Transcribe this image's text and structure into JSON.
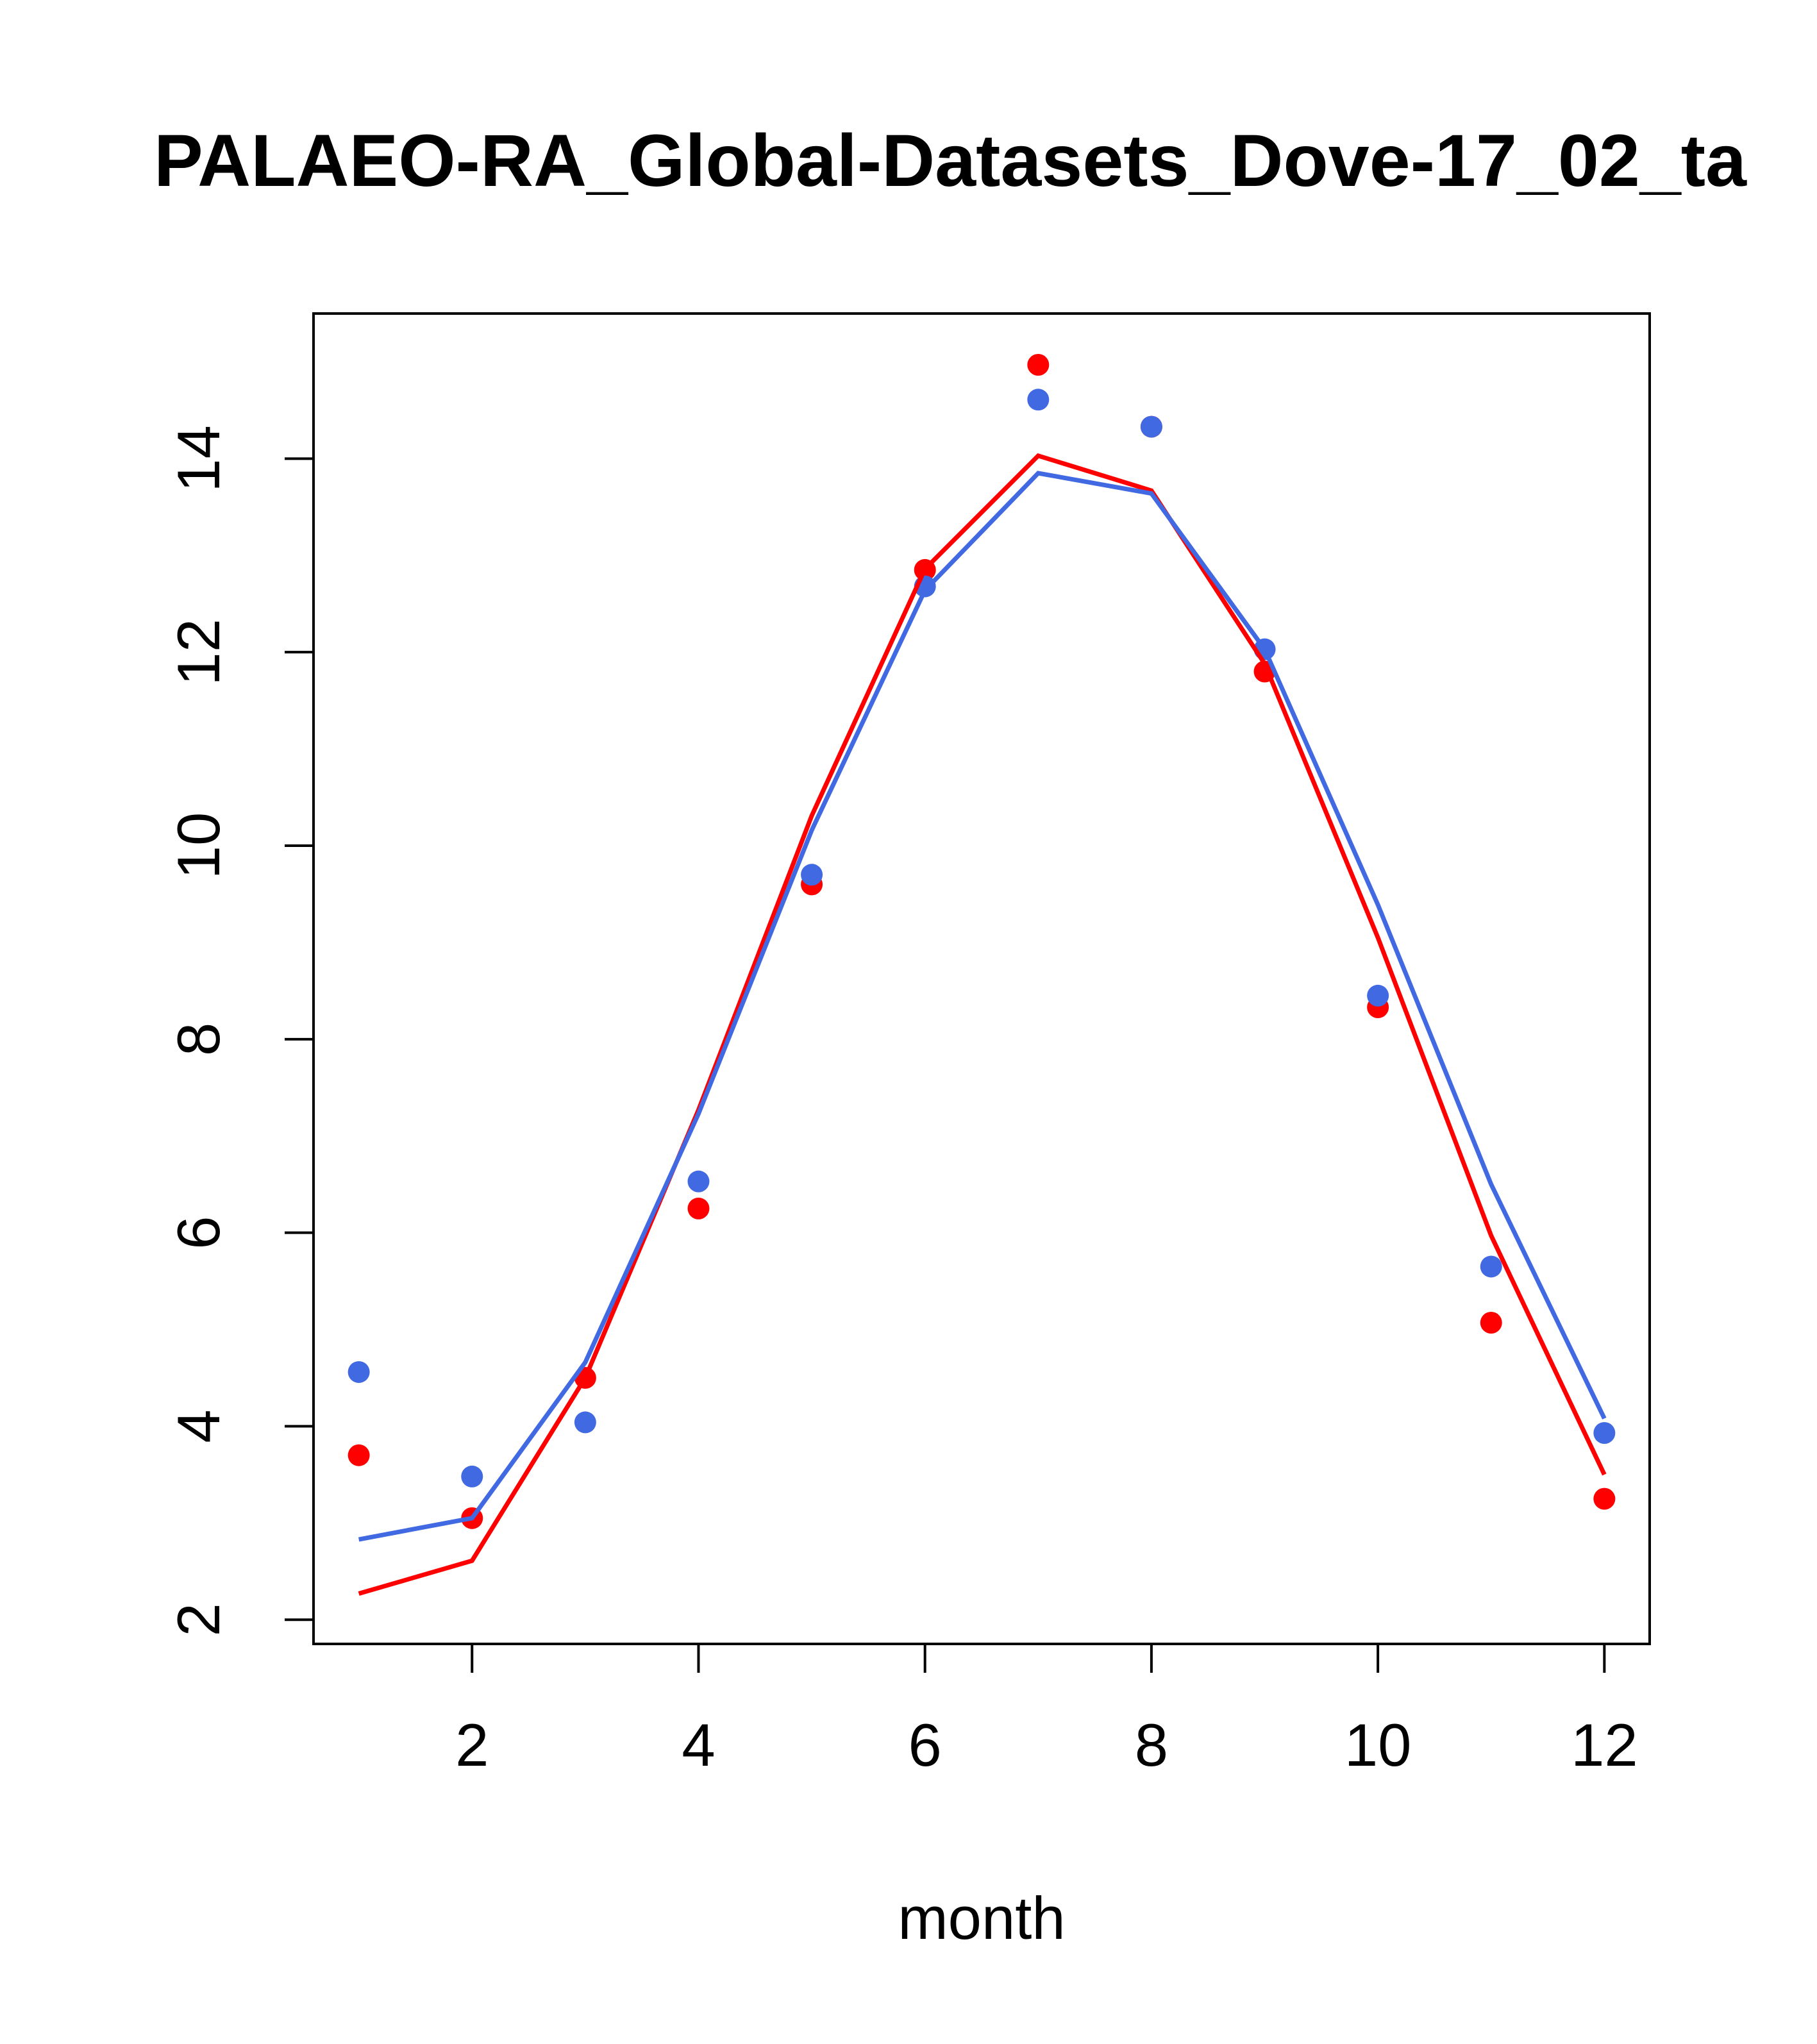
{
  "chart_data": {
    "type": "line",
    "title": "PALAEO-RA_Global-Datasets_Dove-17_02_ta",
    "xlabel": "month",
    "ylabel": "",
    "xlim": [
      0.6,
      12.4
    ],
    "ylim": [
      1.75,
      15.5
    ],
    "x_ticks": [
      2,
      4,
      6,
      8,
      10,
      12
    ],
    "y_ticks": [
      2,
      4,
      6,
      8,
      10,
      12,
      14
    ],
    "grid": false,
    "x": [
      1,
      2,
      3,
      4,
      5,
      6,
      7,
      8,
      9,
      10,
      11,
      12
    ],
    "series": [
      {
        "kind": "points",
        "color": "#ff0000",
        "values": [
          3.7,
          3.05,
          4.5,
          6.25,
          9.6,
          12.85,
          14.97,
          14.33,
          11.8,
          8.33,
          5.07,
          3.25
        ]
      },
      {
        "kind": "points",
        "color": "#4169e1",
        "values": [
          4.56,
          3.48,
          4.04,
          6.53,
          9.7,
          12.68,
          14.61,
          14.33,
          12.03,
          8.45,
          5.65,
          3.93
        ]
      },
      {
        "kind": "line",
        "color": "#ff0000",
        "values": [
          2.27,
          2.61,
          4.5,
          7.27,
          10.31,
          12.86,
          14.03,
          13.67,
          11.88,
          9.05,
          5.97,
          3.5
        ]
      },
      {
        "kind": "line",
        "color": "#4169e1",
        "values": [
          2.83,
          3.05,
          4.66,
          7.23,
          10.16,
          12.64,
          13.85,
          13.64,
          12.03,
          9.39,
          6.5,
          4.08
        ]
      }
    ]
  }
}
